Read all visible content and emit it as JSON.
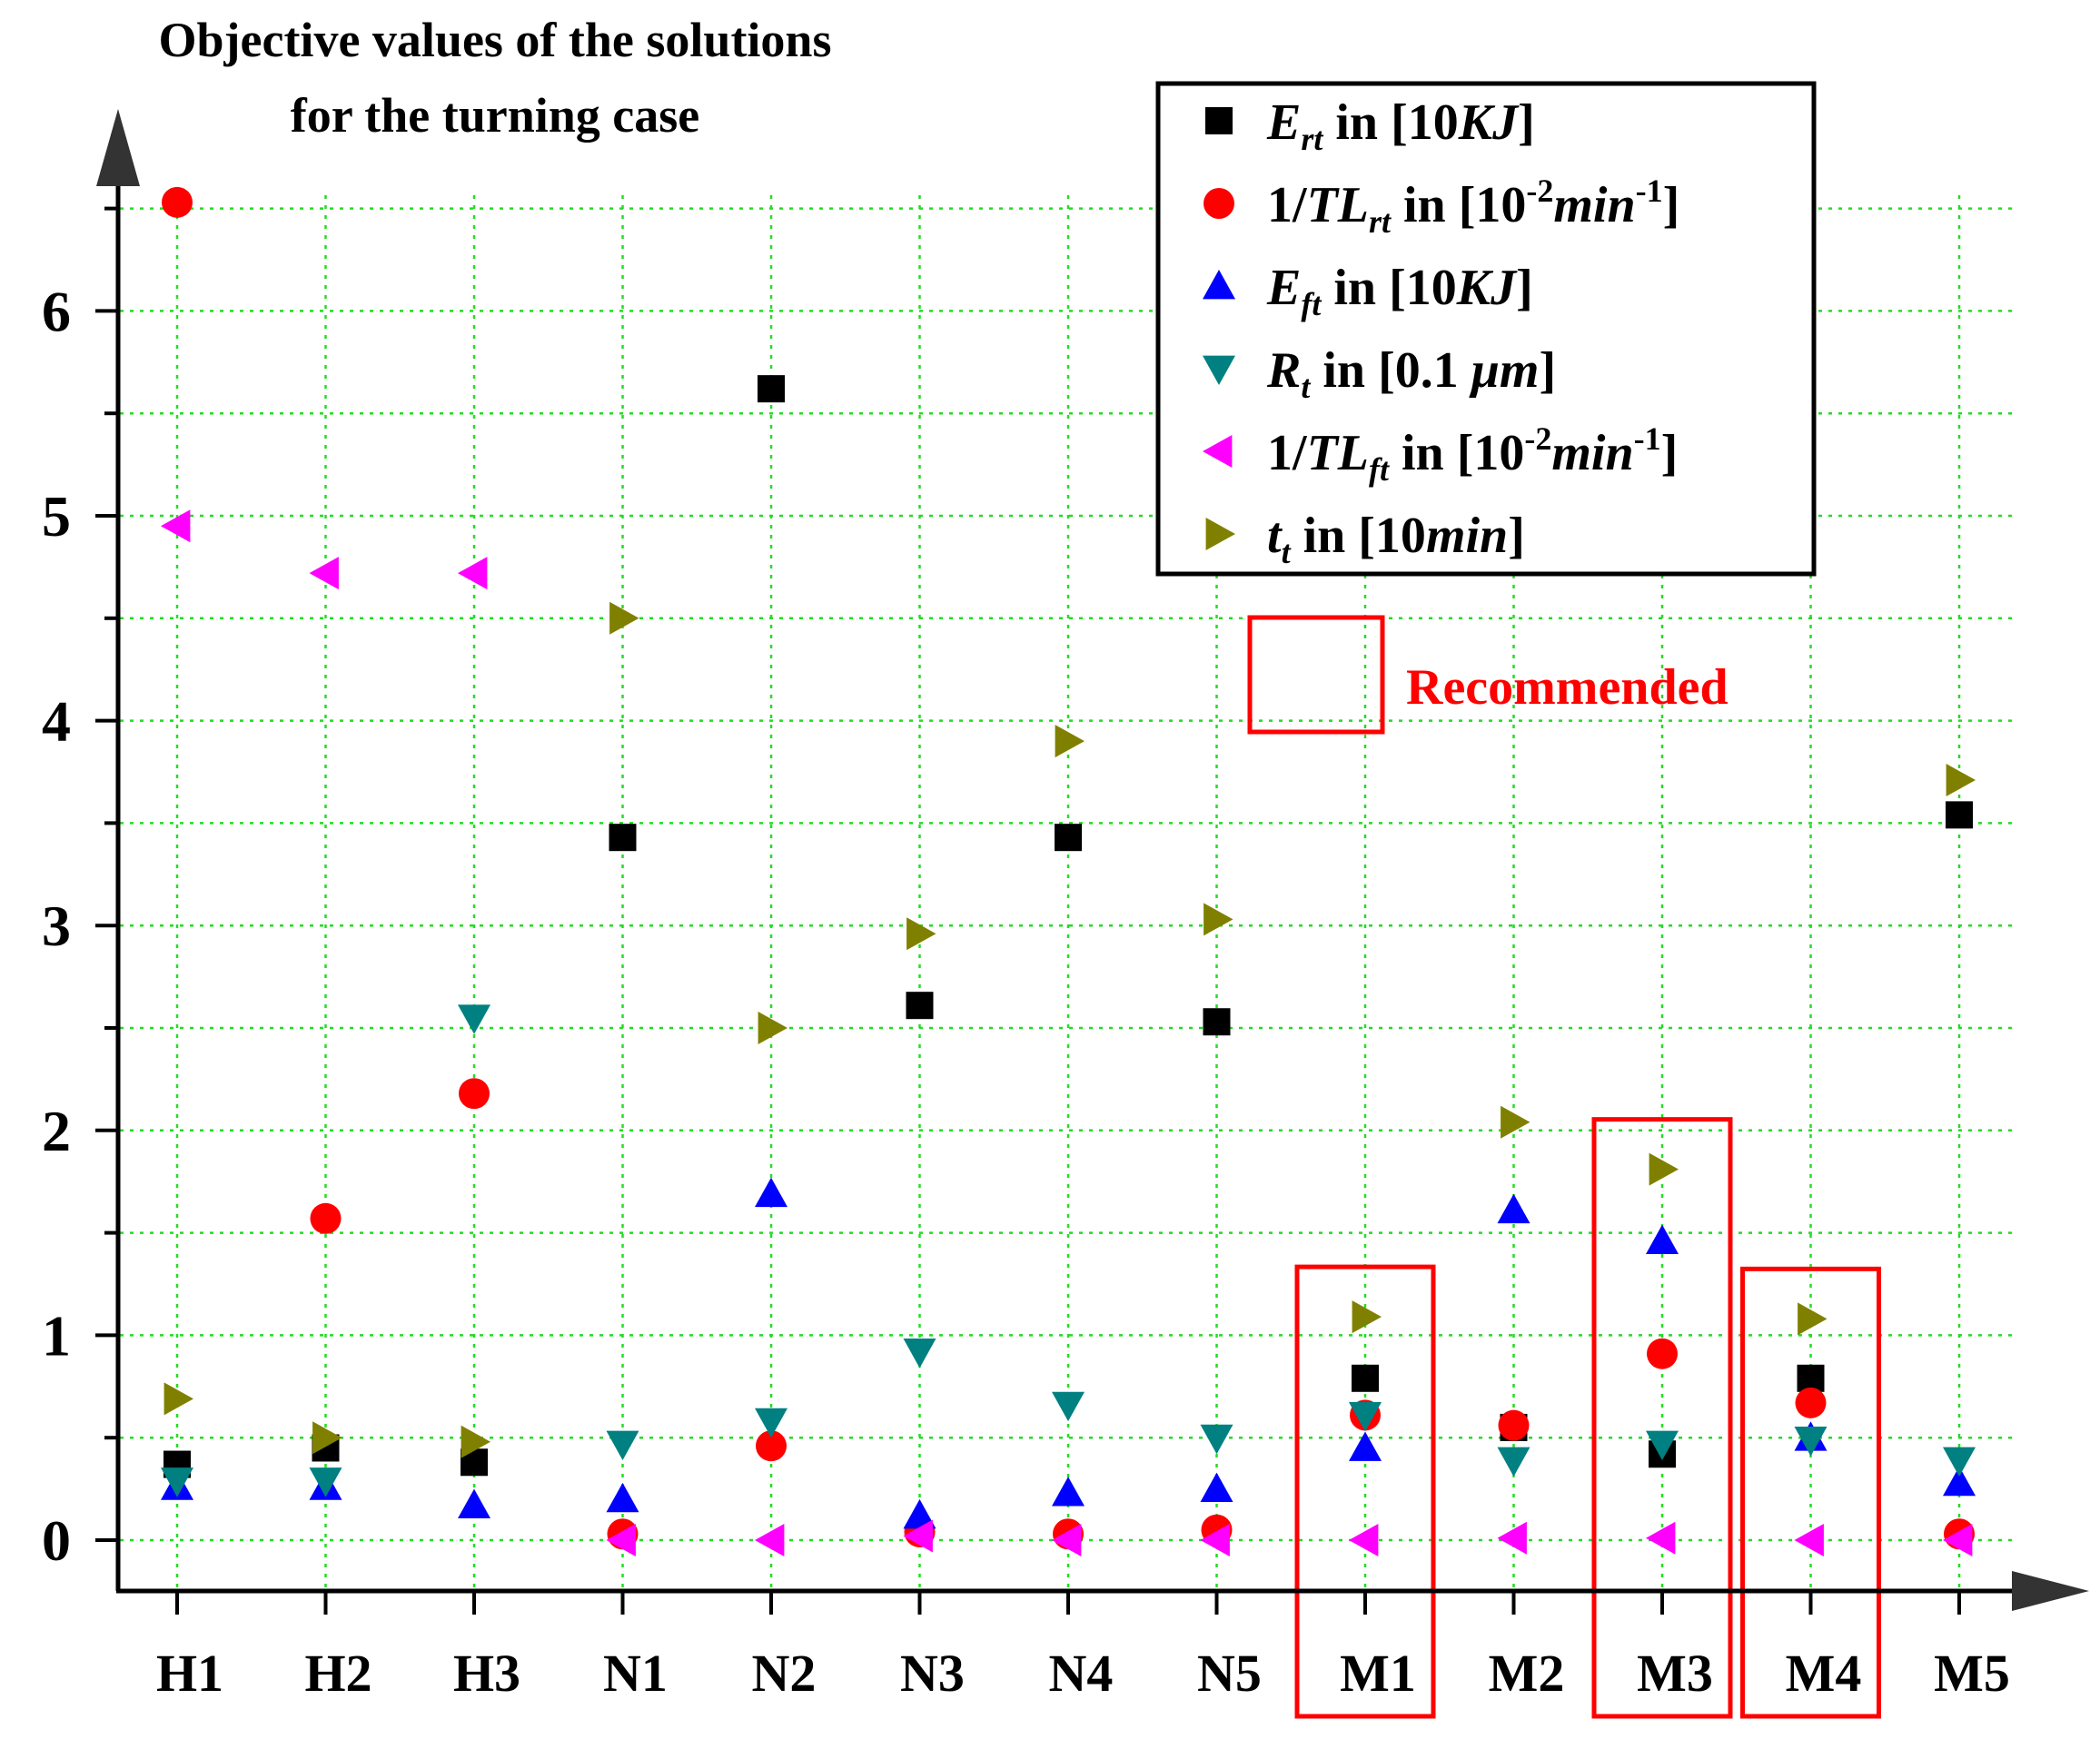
{
  "chart_data": {
    "type": "scatter",
    "title": "Objective values of the solutions for the turning case",
    "title_lines": [
      "Objective values of the solutions",
      "for the turning case"
    ],
    "xlabel": "",
    "ylabel": "",
    "ylim": [
      0,
      6.6
    ],
    "yticks": [
      0,
      1,
      2,
      3,
      4,
      5,
      6
    ],
    "grid": true,
    "legend_position": "top-right",
    "categories": [
      "H1",
      "H2",
      "H3",
      "N1",
      "N2",
      "N3",
      "N4",
      "N5",
      "M1",
      "M2",
      "M3",
      "M4",
      "M5"
    ],
    "recommended": [
      "M1",
      "M3",
      "M4"
    ],
    "recommended_label": "Recommended",
    "series": [
      {
        "name": "E_rt in [10KJ]",
        "label": {
          "pre": "",
          "main": "E",
          "sub": "rt",
          "mid": " in [10",
          "it2": "KJ",
          "sup1": "",
          "tail": "]"
        },
        "marker": "square",
        "color": "#000000",
        "values": [
          0.37,
          0.45,
          0.38,
          3.43,
          5.62,
          2.61,
          3.43,
          2.53,
          0.79,
          0.55,
          0.42,
          0.79,
          3.54
        ]
      },
      {
        "name": "1/TL_rt in [10^-2 min^-1]",
        "label": {
          "pre": "1/",
          "main": "TL",
          "sub": "rt",
          "mid": " in [10",
          "sup1": "-2",
          "it2": "min",
          "sup2": "-1",
          "tail": "]"
        },
        "marker": "circle",
        "color": "#ff0000",
        "values": [
          6.53,
          1.57,
          2.18,
          0.03,
          0.46,
          0.04,
          0.03,
          0.05,
          0.61,
          0.56,
          0.91,
          0.67,
          0.03
        ]
      },
      {
        "name": "E_ft in [10KJ]",
        "label": {
          "pre": "",
          "main": "E",
          "sub": "ft",
          "mid": " in [10",
          "it2": "KJ",
          "sup1": "",
          "tail": "]"
        },
        "marker": "triangle-up",
        "color": "#0000ff",
        "values": [
          0.26,
          0.26,
          0.17,
          0.2,
          1.69,
          0.12,
          0.23,
          0.25,
          0.45,
          1.61,
          1.46,
          0.5,
          0.28
        ]
      },
      {
        "name": "R_t in [0.1 μm]",
        "label": {
          "pre": "",
          "main": "R",
          "sub": "t",
          "mid": " in [0.1 ",
          "it2": "μm",
          "sup1": "",
          "tail": "]"
        },
        "marker": "triangle-down",
        "color": "#008080",
        "values": [
          0.29,
          0.29,
          2.55,
          0.47,
          0.58,
          0.92,
          0.66,
          0.5,
          0.61,
          0.39,
          0.47,
          0.49,
          0.39
        ]
      },
      {
        "name": "1/TL_ft in [10^-2 min^-1]",
        "label": {
          "pre": "1/",
          "main": "TL",
          "sub": "ft",
          "mid": " in [10",
          "sup1": "-2",
          "it2": "min",
          "sup2": "-1",
          "tail": "]"
        },
        "marker": "triangle-left",
        "color": "#ff00ff",
        "values": [
          4.95,
          4.72,
          4.72,
          0.0,
          0.0,
          0.02,
          0.0,
          0.0,
          0.0,
          0.01,
          0.01,
          0.0,
          0.0
        ]
      },
      {
        "name": "t_t in [10min]",
        "label": {
          "pre": "",
          "main": "t",
          "sub": "t",
          "mid": " in [10",
          "it2": "min",
          "sup1": "",
          "tail": "]"
        },
        "marker": "triangle-right",
        "color": "#808000",
        "values": [
          0.69,
          0.5,
          0.48,
          4.5,
          2.5,
          2.96,
          3.9,
          3.03,
          1.09,
          2.04,
          1.81,
          1.08,
          3.71
        ]
      }
    ]
  }
}
